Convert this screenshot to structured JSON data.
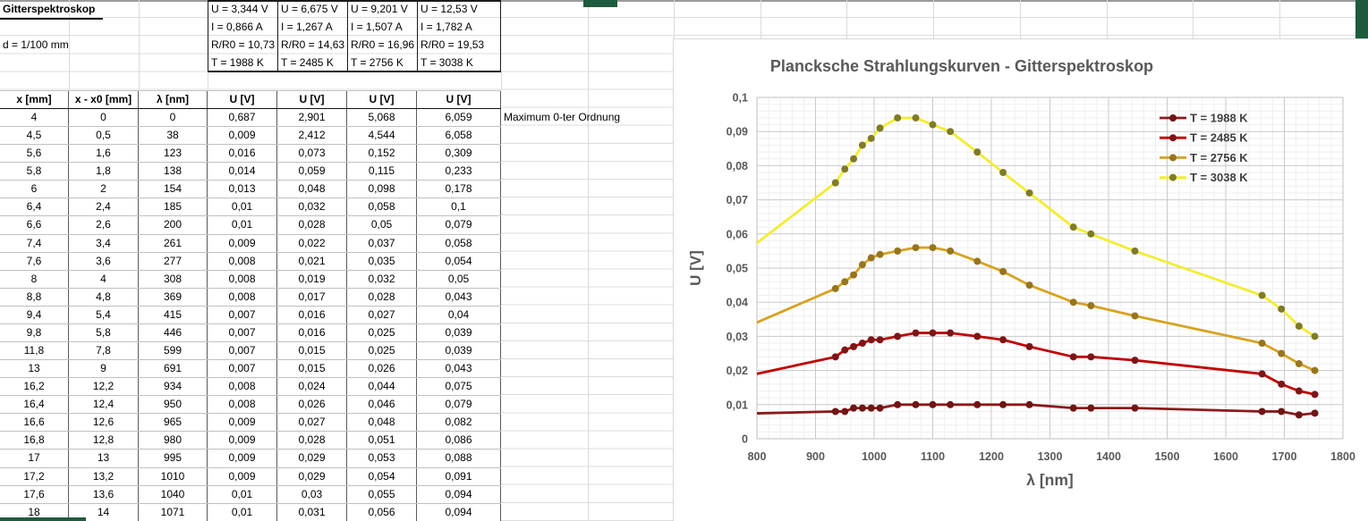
{
  "sheet": {
    "title": "Gitterspektroskop",
    "d_label": "d = 1/100 mm",
    "annotation": "Maximum 0-ter Ordnung",
    "info_columns": [
      {
        "u": "U = 3,344 V",
        "i": "I = 0,866 A",
        "r": "R/R0 = 10,73",
        "t": "T = 1988 K"
      },
      {
        "u": "U = 6,675 V",
        "i": "I = 1,267 A",
        "r": "R/R0 = 14,63",
        "t": "T = 2485 K"
      },
      {
        "u": "U = 9,201 V",
        "i": "I = 1,507 A",
        "r": "R/R0 = 16,96",
        "t": "T = 2756 K"
      },
      {
        "u": "U = 12,53 V",
        "i": "I = 1,782 A",
        "r": "R/R0 = 19,53",
        "t": "T = 3038 K"
      }
    ],
    "table": {
      "headers": [
        "x [mm]",
        "x - x0 [mm]",
        "λ [nm]",
        "U [V]",
        "U [V]",
        "U [V]",
        "U [V]"
      ],
      "rows": [
        [
          "4",
          "0",
          "0",
          "0,687",
          "2,901",
          "5,068",
          "6,059"
        ],
        [
          "4,5",
          "0,5",
          "38",
          "0,009",
          "2,412",
          "4,544",
          "6,058"
        ],
        [
          "5,6",
          "1,6",
          "123",
          "0,016",
          "0,073",
          "0,152",
          "0,309"
        ],
        [
          "5,8",
          "1,8",
          "138",
          "0,014",
          "0,059",
          "0,115",
          "0,233"
        ],
        [
          "6",
          "2",
          "154",
          "0,013",
          "0,048",
          "0,098",
          "0,178"
        ],
        [
          "6,4",
          "2,4",
          "185",
          "0,01",
          "0,032",
          "0,058",
          "0,1"
        ],
        [
          "6,6",
          "2,6",
          "200",
          "0,01",
          "0,028",
          "0,05",
          "0,079"
        ],
        [
          "7,4",
          "3,4",
          "261",
          "0,009",
          "0,022",
          "0,037",
          "0,058"
        ],
        [
          "7,6",
          "3,6",
          "277",
          "0,008",
          "0,021",
          "0,035",
          "0,054"
        ],
        [
          "8",
          "4",
          "308",
          "0,008",
          "0,019",
          "0,032",
          "0,05"
        ],
        [
          "8,8",
          "4,8",
          "369",
          "0,008",
          "0,017",
          "0,028",
          "0,043"
        ],
        [
          "9,4",
          "5,4",
          "415",
          "0,007",
          "0,016",
          "0,027",
          "0,04"
        ],
        [
          "9,8",
          "5,8",
          "446",
          "0,007",
          "0,016",
          "0,025",
          "0,039"
        ],
        [
          "11,8",
          "7,8",
          "599",
          "0,007",
          "0,015",
          "0,025",
          "0,039"
        ],
        [
          "13",
          "9",
          "691",
          "0,007",
          "0,015",
          "0,026",
          "0,043"
        ],
        [
          "16,2",
          "12,2",
          "934",
          "0,008",
          "0,024",
          "0,044",
          "0,075"
        ],
        [
          "16,4",
          "12,4",
          "950",
          "0,008",
          "0,026",
          "0,046",
          "0,079"
        ],
        [
          "16,6",
          "12,6",
          "965",
          "0,009",
          "0,027",
          "0,048",
          "0,082"
        ],
        [
          "16,8",
          "12,8",
          "980",
          "0,009",
          "0,028",
          "0,051",
          "0,086"
        ],
        [
          "17",
          "13",
          "995",
          "0,009",
          "0,029",
          "0,053",
          "0,088"
        ],
        [
          "17,2",
          "13,2",
          "1010",
          "0,009",
          "0,029",
          "0,054",
          "0,091"
        ],
        [
          "17,6",
          "13,6",
          "1040",
          "0,01",
          "0,03",
          "0,055",
          "0,094"
        ],
        [
          "18",
          "14",
          "1071",
          "0,01",
          "0,031",
          "0,056",
          "0,094"
        ]
      ]
    }
  },
  "chart_data": {
    "type": "line",
    "title": "Plancksche Strahlungskurven - Gitterspektroskop",
    "xlabel": "λ [nm]",
    "ylabel": "U [V]",
    "xlim": [
      800,
      1800
    ],
    "ylim": [
      0,
      0.1
    ],
    "x_major": 100,
    "x_minor": 20,
    "y_major": 0.01,
    "y_minor": 0.002,
    "grid": true,
    "legend_position": "top-right",
    "x": [
      0,
      38,
      123,
      138,
      154,
      185,
      200,
      261,
      277,
      308,
      369,
      415,
      446,
      599,
      691,
      934,
      950,
      965,
      980,
      995,
      1010,
      1040,
      1071,
      1100,
      1130,
      1176,
      1220,
      1265,
      1340,
      1370,
      1445,
      1662,
      1695,
      1725,
      1752
    ],
    "series": [
      {
        "name": "T = 1988 K",
        "color": "#8b1a1a",
        "marker_color": "#701414",
        "values": [
          0.687,
          0.009,
          0.016,
          0.014,
          0.013,
          0.01,
          0.01,
          0.009,
          0.008,
          0.008,
          0.008,
          0.007,
          0.007,
          0.007,
          0.007,
          0.008,
          0.008,
          0.009,
          0.009,
          0.009,
          0.009,
          0.01,
          0.01,
          0.01,
          0.01,
          0.01,
          0.01,
          0.01,
          0.009,
          0.009,
          0.009,
          0.008,
          0.008,
          0.007,
          0.0075
        ]
      },
      {
        "name": "T = 2485 K",
        "color": "#c00000",
        "marker_color": "#7d1517",
        "values": [
          2.901,
          2.412,
          0.073,
          0.059,
          0.048,
          0.032,
          0.028,
          0.022,
          0.021,
          0.019,
          0.017,
          0.016,
          0.016,
          0.015,
          0.015,
          0.024,
          0.026,
          0.027,
          0.028,
          0.029,
          0.029,
          0.03,
          0.031,
          0.031,
          0.031,
          0.03,
          0.029,
          0.027,
          0.024,
          0.024,
          0.023,
          0.019,
          0.016,
          0.014,
          0.013
        ]
      },
      {
        "name": "T = 2756 K",
        "color": "#d6a321",
        "marker_color": "#97751d",
        "values": [
          5.068,
          4.544,
          0.152,
          0.115,
          0.098,
          0.058,
          0.05,
          0.037,
          0.035,
          0.032,
          0.028,
          0.027,
          0.025,
          0.025,
          0.026,
          0.044,
          0.046,
          0.048,
          0.051,
          0.053,
          0.054,
          0.055,
          0.056,
          0.056,
          0.055,
          0.052,
          0.049,
          0.045,
          0.04,
          0.039,
          0.036,
          0.028,
          0.025,
          0.022,
          0.02
        ]
      },
      {
        "name": "T = 3038 K",
        "color": "#f2ed32",
        "marker_color": "#7f7b26",
        "values": [
          6.059,
          6.058,
          0.309,
          0.233,
          0.178,
          0.1,
          0.079,
          0.058,
          0.054,
          0.05,
          0.043,
          0.04,
          0.039,
          0.039,
          0.043,
          0.075,
          0.079,
          0.082,
          0.086,
          0.088,
          0.091,
          0.094,
          0.094,
          0.092,
          0.09,
          0.084,
          0.078,
          0.072,
          0.062,
          0.06,
          0.055,
          0.042,
          0.038,
          0.033,
          0.03
        ]
      }
    ]
  },
  "colors": {
    "selection_green": "#1e5b3c",
    "title_gray": "#595959",
    "legend_text": "#404040",
    "major_grid": "#c9c9c9",
    "minor_grid": "#efefef",
    "plot_border": "#bfbfbf"
  }
}
